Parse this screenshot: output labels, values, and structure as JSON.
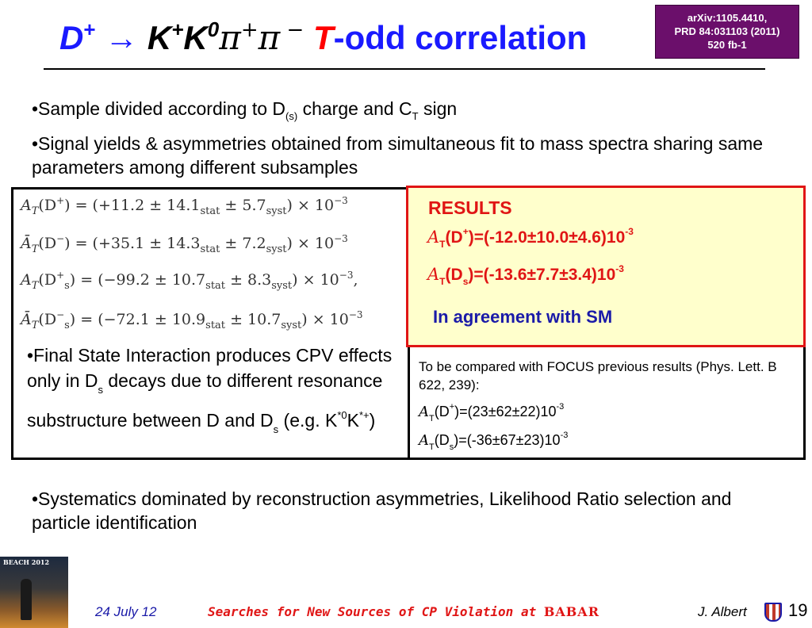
{
  "header": {
    "title_D": "D",
    "title_plus1": "+",
    "title_arrow": " → ",
    "title_K": "K",
    "title_plus2": "+",
    "title_K0": "K",
    "title_zero": "0",
    "title_pi1": "π",
    "title_plus3": "+",
    "title_pi2": "π",
    "title_minus": " −",
    "title_T": " T",
    "title_rest": "-odd correlation"
  },
  "reference": {
    "line1": "arXiv:1105.4410,",
    "line2": "PRD 84:031103 (2011)",
    "line3": "520 fb-1"
  },
  "bullets": {
    "b1_pre": "•Sample divided according to D",
    "b1_sub": "(s)",
    "b1_mid": " charge and C",
    "b1_sub2": "T",
    "b1_post": " sign",
    "b2": "•Signal yields & asymmetries obtained from simultaneous fit to mass spectra sharing same parameters among different subsamples",
    "b4": "•Systematics dominated by reconstruction asymmetries, Likelihood Ratio selection and particle identification"
  },
  "equations": {
    "e1_a": "A",
    "e1_b": "T",
    "e1_c": "(D",
    "e1_d": "+",
    "e1_e": ") = (+11.2 ± 14.1",
    "e1_f": "stat",
    "e1_g": " ± 5.7",
    "e1_h": "syst",
    "e1_i": ") × 10",
    "e1_j": "−3",
    "e2_a": "Ā",
    "e2_b": "T",
    "e2_c": "(D",
    "e2_d": "−",
    "e2_e": ") = (+35.1 ± 14.3",
    "e2_f": "stat",
    "e2_g": " ± 7.2",
    "e2_h": "syst",
    "e2_i": ") × 10",
    "e2_j": "−3",
    "e3_a": "A",
    "e3_b": "T",
    "e3_c": "(D",
    "e3_d": "+",
    "e3_s": "s",
    "e3_e": ") = (−99.2 ± 10.7",
    "e3_f": "stat",
    "e3_g": " ± 8.3",
    "e3_h": "syst",
    "e3_i": ") × 10",
    "e3_j": "−3",
    "e3_k": ",",
    "e4_a": "Ā",
    "e4_b": "T",
    "e4_c": "(D",
    "e4_d": "−",
    "e4_s": "s",
    "e4_e": ") = (−72.1 ± 10.9",
    "e4_f": "stat",
    "e4_g": " ± 10.7",
    "e4_h": "syst",
    "e4_i": ") × 10",
    "e4_j": "−3"
  },
  "fsi": {
    "l1": "•Final State Interaction produces CPV effects only in D",
    "l1_sub": "s",
    "l2": " decays due to different resonance substructure between D and D",
    "l2_sub": "s",
    "l3": " (e.g. K",
    "l3_sup": "*0",
    "l4": "K",
    "l4_sup": "*+",
    "l5": ")"
  },
  "results": {
    "title": "RESULTS",
    "a_symbol": "A",
    "t_sub": "T",
    "r1_pre": "(D",
    "r1_sup": "+",
    "r1_post": ")=(-12.0±10.0±4.6)10",
    "r1_exp": "-3",
    "r2_pre": "(D",
    "r2_sub": "s",
    "r2_post": ")=(-13.6±7.7±3.4)10",
    "r2_exp": "-3",
    "agreement": "In agreement with SM"
  },
  "focus": {
    "intro": "To be compared with FOCUS previous results (Phys. Lett. B 622, 239):",
    "a_symbol": "A",
    "t_sub": "T",
    "f1_pre": "(D",
    "f1_sup": "+",
    "f1_post": ")=(23±62±22)10",
    "f1_exp": "-3",
    "f2_pre": "(D",
    "f2_sub": "s",
    "f2_post": ")=(-36±67±23)10",
    "f2_exp": "-3"
  },
  "footer": {
    "conf_label": "BEACH 2012",
    "date": "24 July 12",
    "talk_title": "Searches for New Sources of CP Violation at ",
    "babar": "BABAR",
    "author": "J. Albert",
    "page": "19"
  }
}
